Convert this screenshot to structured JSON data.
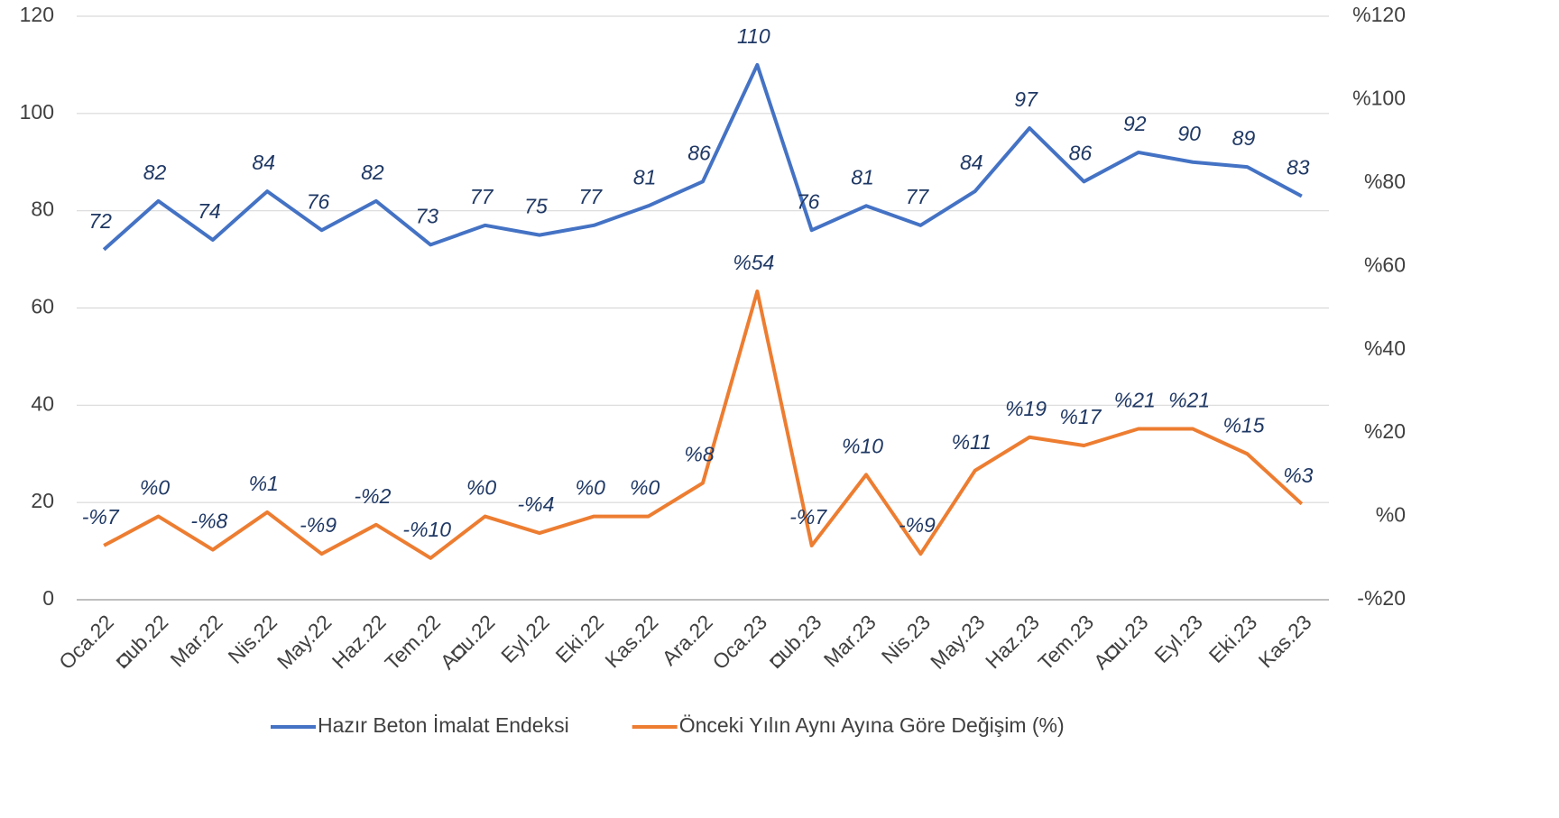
{
  "chart_data": {
    "type": "line",
    "categories": [
      "Oca.22",
      "◘ub.22",
      "Mar.22",
      "Nis.22",
      "May.22",
      "Haz.22",
      "Tem.22",
      "A◘u.22",
      "Eyl.22",
      "Eki.22",
      "Kas.22",
      "Ara.22",
      "Oca.23",
      "◘ub.23",
      "Mar.23",
      "Nis.23",
      "May.23",
      "Haz.23",
      "Tem.23",
      "A◘u.23",
      "Eyl.23",
      "Eki.23",
      "Kas.23"
    ],
    "series": [
      {
        "name": "Hazır Beton İmalat Endeksi",
        "color": "#4472c4",
        "values": [
          72,
          82,
          74,
          84,
          76,
          82,
          73,
          77,
          75,
          77,
          81,
          86,
          110,
          76,
          81,
          77,
          84,
          97,
          86,
          92,
          90,
          89,
          83
        ]
      },
      {
        "name": "Önceki Yılın Aynı Ayına Göre Değişim (%)",
        "color": "#ed7d31",
        "axis": "y2",
        "values": [
          -7,
          0,
          -8,
          1,
          -9,
          -2,
          -10,
          0,
          -4,
          0,
          0,
          8,
          54,
          -7,
          10,
          -9,
          11,
          19,
          17,
          21,
          21,
          15,
          3
        ],
        "value_labels": [
          "-%7",
          "%0",
          "-%8",
          "%1",
          "-%9",
          "-%2",
          "-%10",
          "%0",
          "-%4",
          "%0",
          "%0",
          "%8",
          "%54",
          "-%7",
          "%10",
          "-%9",
          "%11",
          "%19",
          "%17",
          "%21",
          "%21",
          "%15",
          "%3"
        ]
      }
    ],
    "ylim": [
      0,
      120
    ],
    "yticks": [
      0,
      20,
      40,
      60,
      80,
      100,
      120
    ],
    "y2lim": [
      -20,
      120
    ],
    "y2ticks": [
      {
        "value": -20,
        "label": "-%20"
      },
      {
        "value": 0,
        "label": "%0"
      },
      {
        "value": 20,
        "label": "%20"
      },
      {
        "value": 40,
        "label": "%40"
      },
      {
        "value": 60,
        "label": "%60"
      },
      {
        "value": 80,
        "label": "%80"
      },
      {
        "value": 100,
        "label": "%100"
      },
      {
        "value": 120,
        "label": "%120"
      }
    ],
    "grid": true,
    "legend": "bottom"
  }
}
